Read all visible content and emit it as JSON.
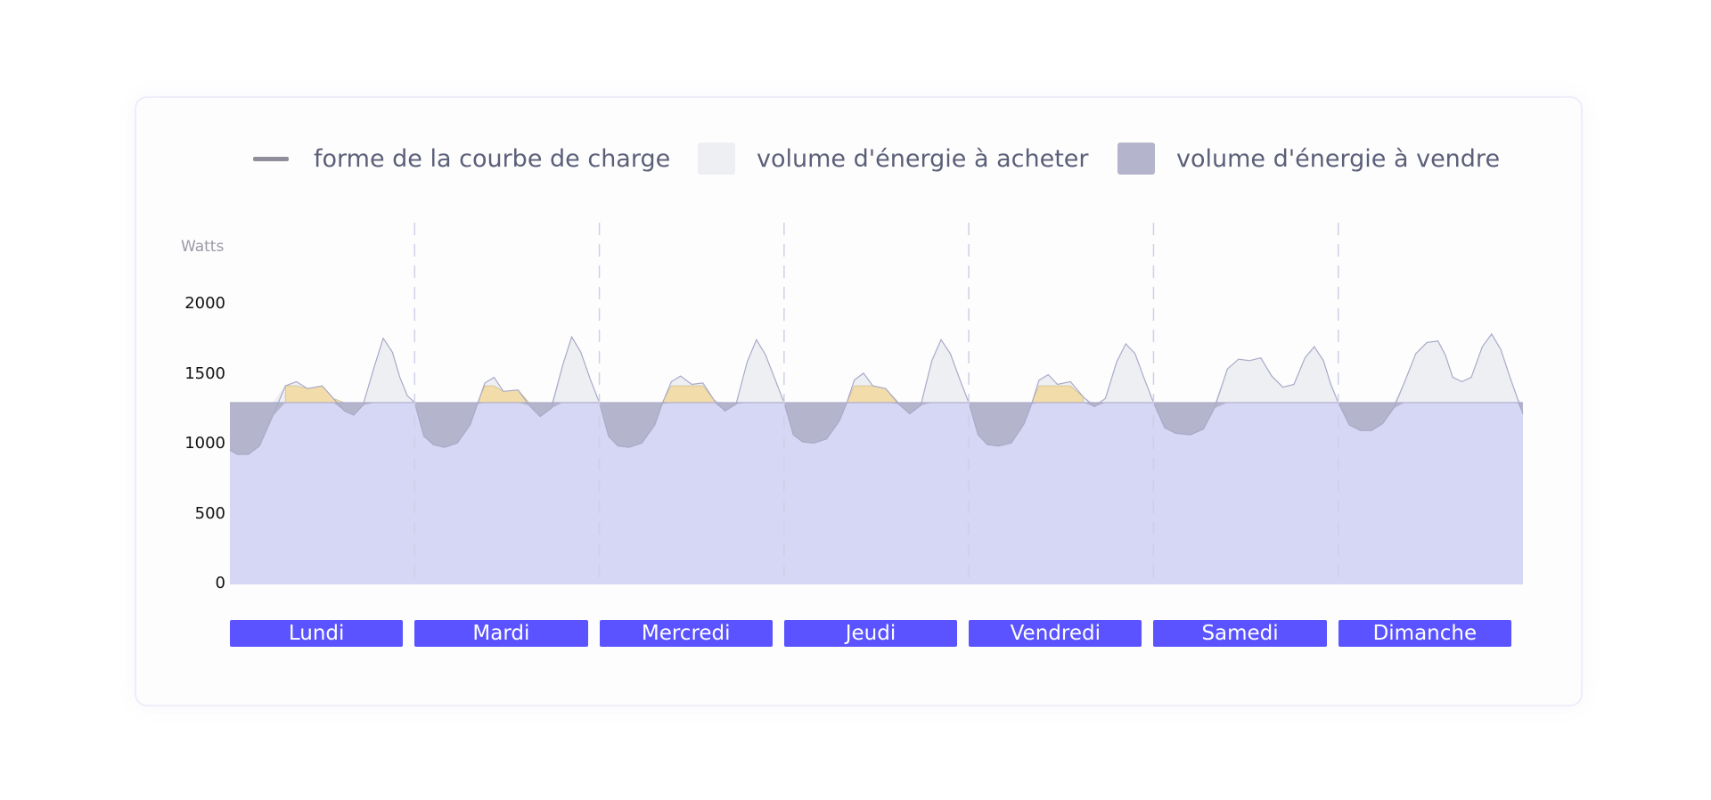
{
  "legend": [
    {
      "label": "forme de la courbe de charge",
      "kind": "line",
      "color": "#8f8f9c"
    },
    {
      "label": "volume d'énergie à acheter",
      "kind": "swatch",
      "color": "#eeeff3"
    },
    {
      "label": "volume d'énergie à vendre",
      "kind": "swatch",
      "color": "#b4b4cc"
    }
  ],
  "chart_data": {
    "type": "area",
    "ylabel": "Watts",
    "ylim": [
      0,
      2000
    ],
    "yticks": [
      0,
      500,
      1000,
      1500,
      2000
    ],
    "reference_level": 1300,
    "stored_band": [
      1300,
      1420
    ],
    "categories": [
      "Lundi",
      "Mardi",
      "Mercredi",
      "Jeudi",
      "Vendredi",
      "Samedi",
      "Dimanche"
    ],
    "series": [
      {
        "name": "forme de la courbe de charge",
        "day_profiles": [
          [
            [
              0,
              960
            ],
            [
              0.04,
              930
            ],
            [
              0.1,
              930
            ],
            [
              0.16,
              990
            ],
            [
              0.23,
              1200
            ],
            [
              0.3,
              1420
            ],
            [
              0.36,
              1450
            ],
            [
              0.42,
              1400
            ],
            [
              0.5,
              1420
            ],
            [
              0.56,
              1330
            ],
            [
              0.62,
              1240
            ],
            [
              0.67,
              1210
            ],
            [
              0.72,
              1280
            ],
            [
              0.78,
              1550
            ],
            [
              0.83,
              1760
            ],
            [
              0.88,
              1660
            ],
            [
              0.92,
              1480
            ],
            [
              0.96,
              1350
            ],
            [
              1,
              1300
            ]
          ],
          [
            [
              0,
              1170
            ],
            [
              0.05,
              1060
            ],
            [
              0.1,
              1000
            ],
            [
              0.16,
              980
            ],
            [
              0.23,
              1010
            ],
            [
              0.3,
              1140
            ],
            [
              0.34,
              1290
            ],
            [
              0.38,
              1440
            ],
            [
              0.43,
              1480
            ],
            [
              0.48,
              1380
            ],
            [
              0.56,
              1390
            ],
            [
              0.62,
              1280
            ],
            [
              0.68,
              1200
            ],
            [
              0.74,
              1260
            ],
            [
              0.8,
              1560
            ],
            [
              0.85,
              1770
            ],
            [
              0.9,
              1660
            ],
            [
              0.95,
              1470
            ],
            [
              1,
              1300
            ]
          ],
          [
            [
              0,
              1170
            ],
            [
              0.05,
              1060
            ],
            [
              0.1,
              990
            ],
            [
              0.16,
              980
            ],
            [
              0.23,
              1010
            ],
            [
              0.3,
              1140
            ],
            [
              0.34,
              1290
            ],
            [
              0.39,
              1450
            ],
            [
              0.44,
              1490
            ],
            [
              0.5,
              1430
            ],
            [
              0.56,
              1440
            ],
            [
              0.62,
              1320
            ],
            [
              0.68,
              1240
            ],
            [
              0.74,
              1290
            ],
            [
              0.8,
              1590
            ],
            [
              0.85,
              1750
            ],
            [
              0.9,
              1640
            ],
            [
              0.95,
              1470
            ],
            [
              1,
              1300
            ]
          ],
          [
            [
              0,
              1170
            ],
            [
              0.05,
              1070
            ],
            [
              0.1,
              1020
            ],
            [
              0.16,
              1010
            ],
            [
              0.23,
              1040
            ],
            [
              0.3,
              1170
            ],
            [
              0.34,
              1300
            ],
            [
              0.38,
              1460
            ],
            [
              0.43,
              1510
            ],
            [
              0.48,
              1420
            ],
            [
              0.55,
              1400
            ],
            [
              0.62,
              1290
            ],
            [
              0.68,
              1220
            ],
            [
              0.74,
              1280
            ],
            [
              0.8,
              1600
            ],
            [
              0.85,
              1750
            ],
            [
              0.9,
              1650
            ],
            [
              0.95,
              1470
            ],
            [
              1,
              1300
            ]
          ],
          [
            [
              0,
              1170
            ],
            [
              0.05,
              1070
            ],
            [
              0.1,
              1000
            ],
            [
              0.16,
              990
            ],
            [
              0.23,
              1010
            ],
            [
              0.3,
              1150
            ],
            [
              0.34,
              1290
            ],
            [
              0.38,
              1460
            ],
            [
              0.43,
              1500
            ],
            [
              0.48,
              1430
            ],
            [
              0.55,
              1450
            ],
            [
              0.62,
              1340
            ],
            [
              0.68,
              1270
            ],
            [
              0.74,
              1330
            ],
            [
              0.8,
              1590
            ],
            [
              0.85,
              1720
            ],
            [
              0.9,
              1650
            ],
            [
              0.95,
              1470
            ],
            [
              1,
              1300
            ]
          ],
          [
            [
              0,
              1190
            ],
            [
              0.06,
              1120
            ],
            [
              0.12,
              1080
            ],
            [
              0.2,
              1070
            ],
            [
              0.27,
              1110
            ],
            [
              0.33,
              1260
            ],
            [
              0.4,
              1540
            ],
            [
              0.46,
              1610
            ],
            [
              0.52,
              1600
            ],
            [
              0.58,
              1620
            ],
            [
              0.64,
              1490
            ],
            [
              0.7,
              1410
            ],
            [
              0.76,
              1430
            ],
            [
              0.82,
              1620
            ],
            [
              0.87,
              1700
            ],
            [
              0.92,
              1600
            ],
            [
              0.96,
              1430
            ],
            [
              1,
              1300
            ]
          ],
          [
            [
              0,
              1200
            ],
            [
              0.06,
              1140
            ],
            [
              0.12,
              1100
            ],
            [
              0.18,
              1100
            ],
            [
              0.24,
              1150
            ],
            [
              0.3,
              1260
            ],
            [
              0.36,
              1450
            ],
            [
              0.42,
              1650
            ],
            [
              0.48,
              1730
            ],
            [
              0.54,
              1740
            ],
            [
              0.58,
              1640
            ],
            [
              0.62,
              1480
            ],
            [
              0.67,
              1450
            ],
            [
              0.72,
              1480
            ],
            [
              0.78,
              1700
            ],
            [
              0.83,
              1790
            ],
            [
              0.88,
              1680
            ],
            [
              0.93,
              1480
            ],
            [
              0.97,
              1330
            ],
            [
              1,
              1220
            ]
          ]
        ]
      }
    ]
  },
  "colors": {
    "base_fill": "#d6d6f5",
    "buy_fill": "#eeeff3",
    "sell_fill": "#b4b4cc",
    "stored_fill": "#f2ddaa",
    "curve": "#a9a9c8",
    "day_button": "#5a53ff"
  }
}
